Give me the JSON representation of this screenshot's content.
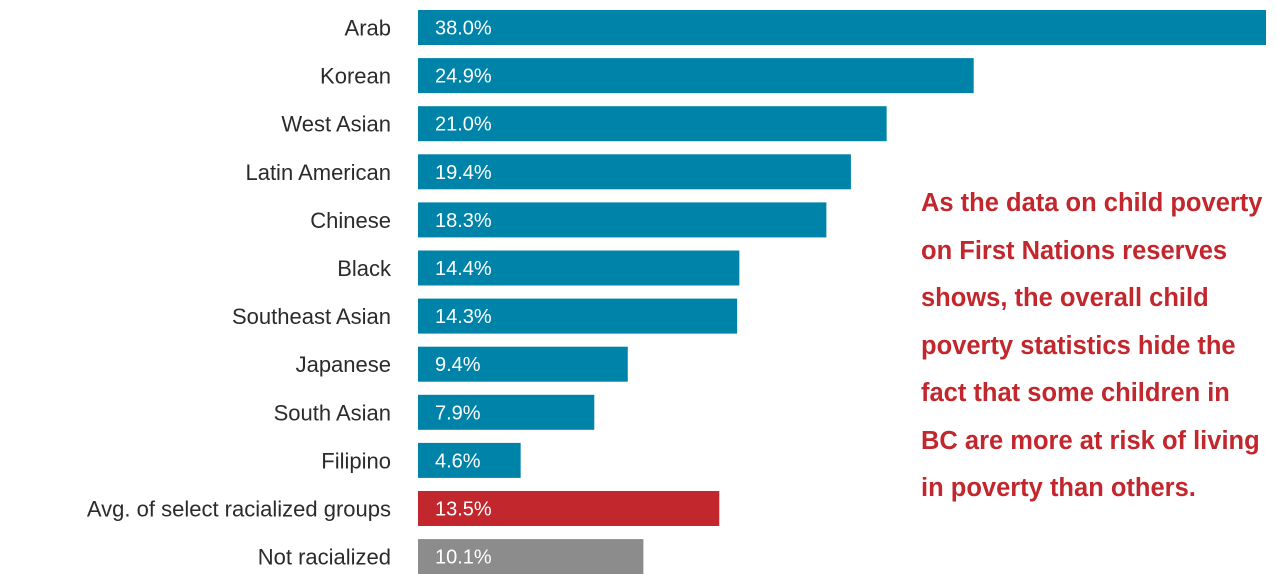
{
  "chart_data": {
    "type": "bar",
    "orientation": "horizontal",
    "categories": [
      "Arab",
      "Korean",
      "West Asian",
      "Latin American",
      "Chinese",
      "Black",
      "Southeast Asian",
      "Japanese",
      "South Asian",
      "Filipino",
      "Avg. of select racialized groups",
      "Not racialized"
    ],
    "values": [
      38.0,
      24.9,
      21.0,
      19.4,
      18.3,
      14.4,
      14.3,
      9.4,
      7.9,
      4.6,
      13.5,
      10.1
    ],
    "value_labels": [
      "38.0%",
      "24.9%",
      "21.0%",
      "19.4%",
      "18.3%",
      "14.4%",
      "14.3%",
      "9.4%",
      "7.9%",
      "4.6%",
      "13.5%",
      "10.1%"
    ],
    "bar_colors": [
      "#0083a9",
      "#0083a9",
      "#0083a9",
      "#0083a9",
      "#0083a9",
      "#0083a9",
      "#0083a9",
      "#0083a9",
      "#0083a9",
      "#0083a9",
      "#c1272d",
      "#8c8c8c"
    ],
    "xlim": [
      0,
      38.0
    ],
    "grid": false,
    "legend": "none"
  },
  "annotation": {
    "text": "As the data on child poverty on First Nations reserves shows, the overall child poverty statistics hide the fact that some children in BC are more at risk of living in poverty than others.",
    "color": "#c1272d"
  }
}
